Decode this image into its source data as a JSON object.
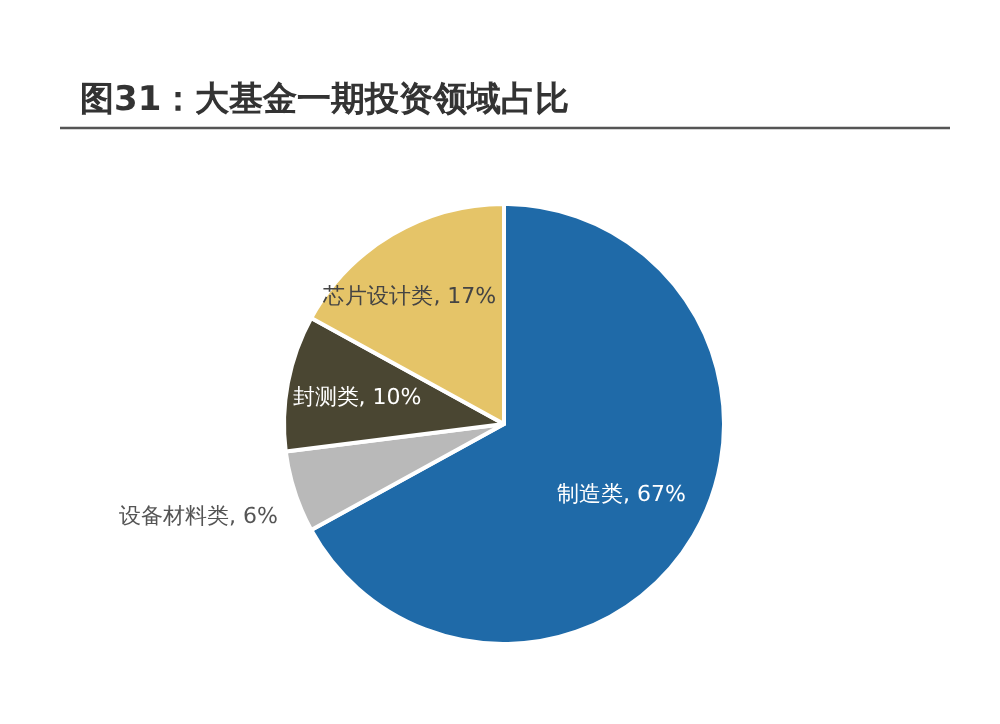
{
  "chart_data": {
    "type": "pie",
    "title": "图31：大基金一期投资领域占比",
    "categories": [
      "制造类",
      "设备材料类",
      "封测类",
      "芯片设计类"
    ],
    "values": [
      67,
      6,
      10,
      17
    ],
    "value_labels": [
      "67%",
      "6%",
      "10%",
      "17%"
    ],
    "colors": [
      "#1f6aa8",
      "#b9b9b9",
      "#4a4632",
      "#e5c468"
    ]
  }
}
